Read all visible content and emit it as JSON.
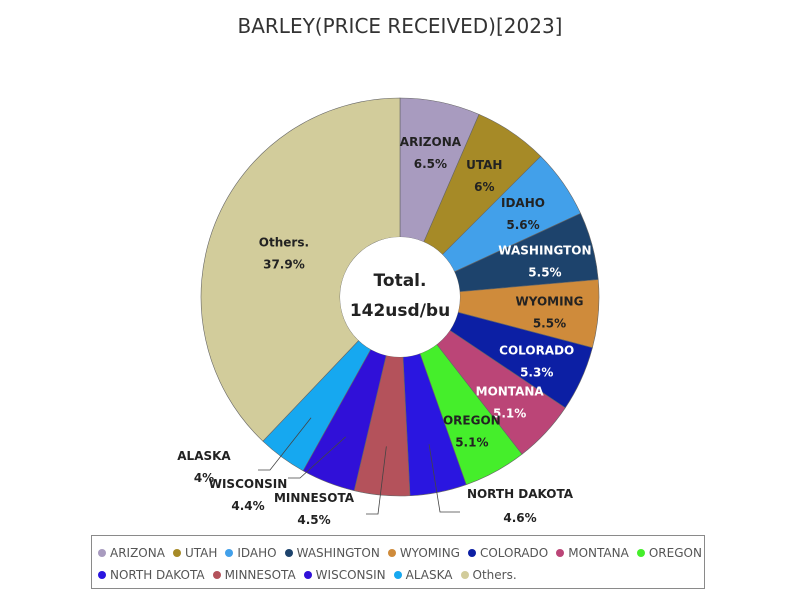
{
  "chart_data": {
    "type": "pie",
    "title": "BARLEY(PRICE RECEIVED)[2023]",
    "center_label": [
      "Total.",
      "142usd/bu"
    ],
    "slices": [
      {
        "name": "ARIZONA",
        "value": 6.5,
        "label": "6.5%",
        "color": "#a89bbf"
      },
      {
        "name": "UTAH",
        "value": 6.0,
        "label": "6%",
        "color": "#a68a27"
      },
      {
        "name": "IDAHO",
        "value": 5.6,
        "label": "5.6%",
        "color": "#42a0ea"
      },
      {
        "name": "WASHINGTON",
        "value": 5.5,
        "label": "5.5%",
        "color": "#1d436c"
      },
      {
        "name": "WYOMING",
        "value": 5.5,
        "label": "5.5%",
        "color": "#cf8b3b"
      },
      {
        "name": "COLORADO",
        "value": 5.3,
        "label": "5.3%",
        "color": "#0c1fa4"
      },
      {
        "name": "MONTANA",
        "value": 5.1,
        "label": "5.1%",
        "color": "#bb4577"
      },
      {
        "name": "OREGON",
        "value": 5.1,
        "label": "5.1%",
        "color": "#45ee2b"
      },
      {
        "name": "NORTH DAKOTA",
        "value": 4.6,
        "label": "4.6%",
        "color": "#2a16e0"
      },
      {
        "name": "MINNESOTA",
        "value": 4.5,
        "label": "4.5%",
        "color": "#b4525b"
      },
      {
        "name": "WISCONSIN",
        "value": 4.4,
        "label": "4.4%",
        "color": "#3010d8"
      },
      {
        "name": "ALASKA",
        "value": 4.0,
        "label": "4%",
        "color": "#16a8f0"
      },
      {
        "name": "Others.",
        "value": 37.9,
        "label": "37.9%",
        "color": "#d2cc9b"
      }
    ],
    "legend_rows": [
      [
        "ARIZONA",
        "UTAH",
        "IDAHO",
        "WASHINGTON",
        "WYOMING",
        "COLORADO",
        "MONTANA",
        "OREGON"
      ],
      [
        "NORTH DAKOTA",
        "MINNESOTA",
        "WISCONSIN",
        "ALASKA",
        "Others."
      ]
    ]
  }
}
